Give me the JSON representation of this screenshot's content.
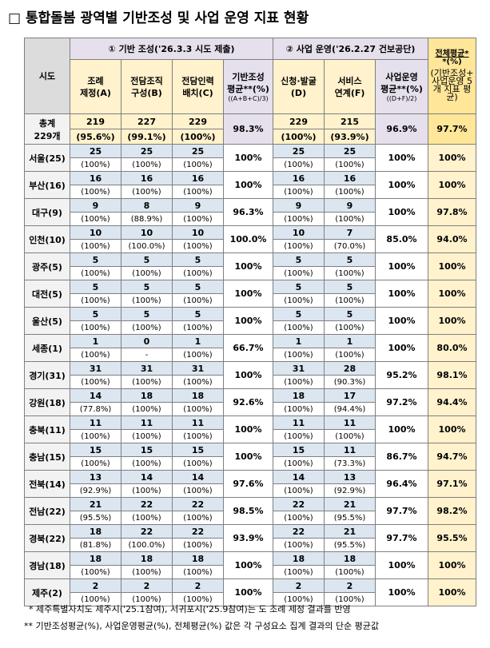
{
  "title": "□ 통합돌봄 광역별 기반조성 및 사업 운영 지표 현황",
  "header": {
    "sido": "시도",
    "group1": "① 기반 조성('26.3.3 시도 제출)",
    "group2": "② 사업 운영('26.2.27 건보공단)",
    "overall_top": "전체평균*",
    "overall_pct": "*(%)",
    "overall_note": "(기반조성+ 사업운영 5개 지표 평균)",
    "a": [
      "조례",
      "제정(A)"
    ],
    "b": [
      "전담조직",
      "구성(B)"
    ],
    "c": [
      "전담인력",
      "배치(C)"
    ],
    "base_avg": [
      "기반조성",
      "평균**(%)"
    ],
    "base_formula": "((A+B+C)/3)",
    "d": [
      "신청·발굴",
      "(D)"
    ],
    "f": [
      "서비스",
      "연계(F)"
    ],
    "op_avg": [
      "사업운영",
      "평균**(%)"
    ],
    "op_formula": "((D+F)/2)"
  },
  "total": {
    "sido": [
      "총계",
      "229개"
    ],
    "a": [
      "219",
      "(95.6%)"
    ],
    "b": [
      "227",
      "(99.1%)"
    ],
    "c": [
      "229",
      "(100%)"
    ],
    "base": "98.3%",
    "d": [
      "229",
      "(100%)"
    ],
    "f": [
      "215",
      "(93.9%)"
    ],
    "op": "96.9%",
    "overall": "97.7%"
  },
  "rows": [
    {
      "sido": "서울(25)",
      "a": [
        "25",
        "(100%)"
      ],
      "b": [
        "25",
        "(100%)"
      ],
      "c": [
        "25",
        "(100%)"
      ],
      "base": "100%",
      "d": [
        "25",
        "(100%)"
      ],
      "f": [
        "25",
        "(100%)"
      ],
      "op": "100%",
      "overall": "100%"
    },
    {
      "sido": "부산(16)",
      "a": [
        "16",
        "(100%)"
      ],
      "b": [
        "16",
        "(100%)"
      ],
      "c": [
        "16",
        "(100%)"
      ],
      "base": "100%",
      "d": [
        "16",
        "(100%)"
      ],
      "f": [
        "16",
        "(100%)"
      ],
      "op": "100%",
      "overall": "100%"
    },
    {
      "sido": "대구(9)",
      "a": [
        "9",
        "(100%)"
      ],
      "b": [
        "8",
        "(88.9%)"
      ],
      "c": [
        "9",
        "(100%)"
      ],
      "base": "96.3%",
      "d": [
        "9",
        "(100%)"
      ],
      "f": [
        "9",
        "(100%)"
      ],
      "op": "100%",
      "overall": "97.8%"
    },
    {
      "sido": "인천(10)",
      "a": [
        "10",
        "(100%)"
      ],
      "b": [
        "10",
        "(100.0%)"
      ],
      "c": [
        "10",
        "(100%)"
      ],
      "base": "100.0%",
      "d": [
        "10",
        "(100%)"
      ],
      "f": [
        "7",
        "(70.0%)"
      ],
      "op": "85.0%",
      "overall": "94.0%"
    },
    {
      "sido": "광주(5)",
      "a": [
        "5",
        "(100%)"
      ],
      "b": [
        "5",
        "(100%)"
      ],
      "c": [
        "5",
        "(100%)"
      ],
      "base": "100%",
      "d": [
        "5",
        "(100%)"
      ],
      "f": [
        "5",
        "(100%)"
      ],
      "op": "100%",
      "overall": "100%"
    },
    {
      "sido": "대전(5)",
      "a": [
        "5",
        "(100%)"
      ],
      "b": [
        "5",
        "(100%)"
      ],
      "c": [
        "5",
        "(100%)"
      ],
      "base": "100%",
      "d": [
        "5",
        "(100%)"
      ],
      "f": [
        "5",
        "(100%)"
      ],
      "op": "100%",
      "overall": "100%"
    },
    {
      "sido": "울산(5)",
      "a": [
        "5",
        "(100%)"
      ],
      "b": [
        "5",
        "(100%)"
      ],
      "c": [
        "5",
        "(100%)"
      ],
      "base": "100%",
      "d": [
        "5",
        "(100%)"
      ],
      "f": [
        "5",
        "(100%)"
      ],
      "op": "100%",
      "overall": "100%"
    },
    {
      "sido": "세종(1)",
      "a": [
        "1",
        "(100%)"
      ],
      "b": [
        "0",
        "-"
      ],
      "c": [
        "1",
        "(100%)"
      ],
      "base": "66.7%",
      "d": [
        "1",
        "(100%)"
      ],
      "f": [
        "1",
        "(100%)"
      ],
      "op": "100%",
      "overall": "80.0%"
    },
    {
      "sido": "경기(31)",
      "a": [
        "31",
        "(100%)"
      ],
      "b": [
        "31",
        "(100%)"
      ],
      "c": [
        "31",
        "(100%)"
      ],
      "base": "100%",
      "d": [
        "31",
        "(100%)"
      ],
      "f": [
        "28",
        "(90.3%)"
      ],
      "op": "95.2%",
      "overall": "98.1%"
    },
    {
      "sido": "강원(18)",
      "a": [
        "14",
        "(77.8%)"
      ],
      "b": [
        "18",
        "(100%)"
      ],
      "c": [
        "18",
        "(100%)"
      ],
      "base": "92.6%",
      "d": [
        "18",
        "(100%)"
      ],
      "f": [
        "17",
        "(94.4%)"
      ],
      "op": "97.2%",
      "overall": "94.4%"
    },
    {
      "sido": "충북(11)",
      "a": [
        "11",
        "(100%)"
      ],
      "b": [
        "11",
        "(100%)"
      ],
      "c": [
        "11",
        "(100%)"
      ],
      "base": "100%",
      "d": [
        "11",
        "(100%)"
      ],
      "f": [
        "11",
        "(100%)"
      ],
      "op": "100%",
      "overall": "100%"
    },
    {
      "sido": "충남(15)",
      "a": [
        "15",
        "(100%)"
      ],
      "b": [
        "15",
        "(100%)"
      ],
      "c": [
        "15",
        "(100%)"
      ],
      "base": "100%",
      "d": [
        "15",
        "(100%)"
      ],
      "f": [
        "11",
        "(73.3%)"
      ],
      "op": "86.7%",
      "overall": "94.7%"
    },
    {
      "sido": "전북(14)",
      "a": [
        "13",
        "(92.9%)"
      ],
      "b": [
        "14",
        "(100%)"
      ],
      "c": [
        "14",
        "(100%)"
      ],
      "base": "97.6%",
      "d": [
        "14",
        "(100%)"
      ],
      "f": [
        "13",
        "(92.9%)"
      ],
      "op": "96.4%",
      "overall": "97.1%"
    },
    {
      "sido": "전남(22)",
      "a": [
        "21",
        "(95.5%)"
      ],
      "b": [
        "22",
        "(100%)"
      ],
      "c": [
        "22",
        "(100%)"
      ],
      "base": "98.5%",
      "d": [
        "22",
        "(100%)"
      ],
      "f": [
        "21",
        "(95.5%)"
      ],
      "op": "97.7%",
      "overall": "98.2%"
    },
    {
      "sido": "경북(22)",
      "a": [
        "18",
        "(81.8%)"
      ],
      "b": [
        "22",
        "(100.0%)"
      ],
      "c": [
        "22",
        "(100%)"
      ],
      "base": "93.9%",
      "d": [
        "22",
        "(100%)"
      ],
      "f": [
        "21",
        "(95.5%)"
      ],
      "op": "97.7%",
      "overall": "95.5%"
    },
    {
      "sido": "경남(18)",
      "a": [
        "18",
        "(100%)"
      ],
      "b": [
        "18",
        "(100%)"
      ],
      "c": [
        "18",
        "(100%)"
      ],
      "base": "100%",
      "d": [
        "18",
        "(100%)"
      ],
      "f": [
        "18",
        "(100%)"
      ],
      "op": "100%",
      "overall": "100%"
    },
    {
      "sido": "제주(2)",
      "a": [
        "2",
        "(100%)"
      ],
      "b": [
        "2",
        "(100%)"
      ],
      "c": [
        "2",
        "(100%)"
      ],
      "base": "100%",
      "d": [
        "2",
        "(100%)"
      ],
      "f": [
        "2",
        "(100%)"
      ],
      "op": "100%",
      "overall": "100%"
    }
  ],
  "notes": [
    "* 제주특별자치도 제주시('25.1참여), 서귀포시('25.9참여)는 도 조례 제정 결과를 반영",
    "** 기반조성평균(%), 사업운영평균(%), 전체평균(%) 값은 각 구성요소 집계 결과의 단순 평균값"
  ],
  "colors": {
    "header_lavender": "#e5e0ec",
    "header_yellow": "#fff2cc",
    "overall_yellow": "#ffe699",
    "count_row_blue": "#dce6f1",
    "sido_gray": "#f2f2f2"
  }
}
